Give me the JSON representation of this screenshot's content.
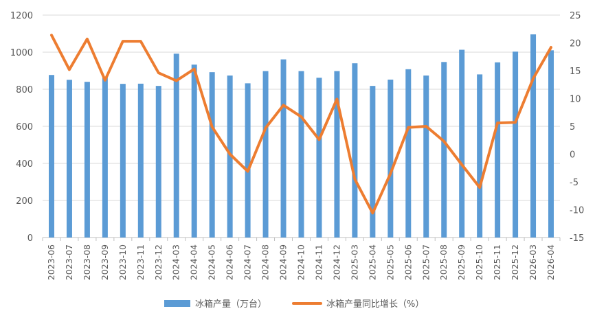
{
  "chart_data": {
    "type": "bar+line",
    "categories": [
      "2023-06",
      "2023-07",
      "2023-08",
      "2023-09",
      "2023-10",
      "2023-11",
      "2023-12",
      "2024-03",
      "2024-04",
      "2024-05",
      "2024-06",
      "2024-07",
      "2024-08",
      "2024-09",
      "2024-10",
      "2024-11",
      "2024-12",
      "2025-03",
      "2025-04",
      "2025-05",
      "2025-06",
      "2025-07",
      "2025-08",
      "2025-09",
      "2025-10",
      "2025-11",
      "2025-12",
      "2026-03",
      "2026-04"
    ],
    "series": [
      {
        "name": "冰箱产量（万台）",
        "type": "bar",
        "axis": "left",
        "color": "#5b9bd5",
        "values": [
          877,
          851,
          840,
          863,
          829,
          830,
          818,
          992,
          933,
          892,
          874,
          832,
          898,
          961,
          898,
          862,
          898,
          940,
          818,
          852,
          908,
          874,
          947,
          1013,
          880,
          945,
          1003,
          1096,
          1010
        ]
      },
      {
        "name": "冰箱产量同比增长（%）",
        "type": "line",
        "axis": "right",
        "color": "#ed7d31",
        "values": [
          21.4,
          15.2,
          20.7,
          13.3,
          20.3,
          20.3,
          14.6,
          13.2,
          15.3,
          4.9,
          0.0,
          -3.1,
          4.7,
          8.8,
          6.7,
          2.6,
          9.9,
          -4.5,
          -10.6,
          -3.5,
          4.8,
          5.0,
          2.3,
          -1.9,
          -6.0,
          5.6,
          5.7,
          13.6,
          19.2
        ]
      }
    ],
    "y_left": {
      "min": 0,
      "max": 1200,
      "ticks": [
        "0",
        "200",
        "400",
        "600",
        "800",
        "1000",
        "1200"
      ]
    },
    "y_right": {
      "min": -15,
      "max": 25,
      "ticks": [
        "-15",
        "-10",
        "-5",
        "0",
        "5",
        "10",
        "15",
        "20",
        "25"
      ]
    },
    "grid": true,
    "legend_position": "bottom",
    "title": "",
    "xlabel": "",
    "ylabel": ""
  }
}
